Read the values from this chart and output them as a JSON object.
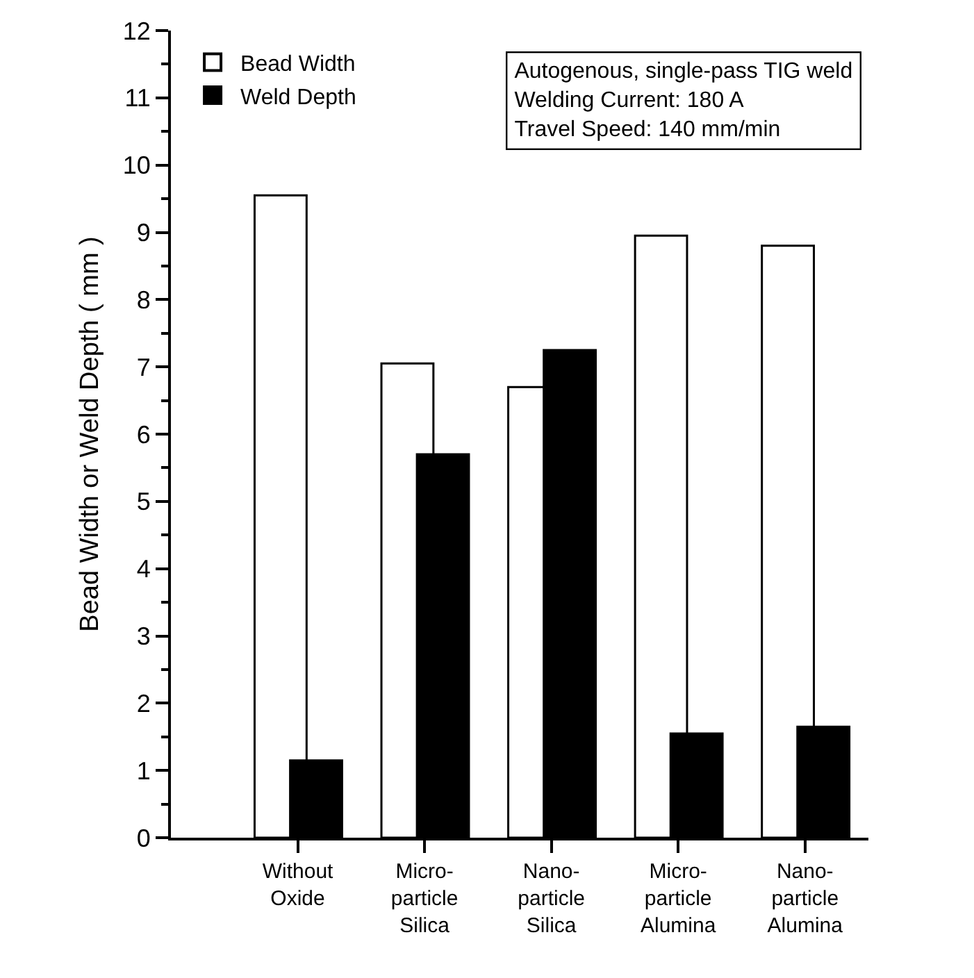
{
  "chart_data": {
    "type": "bar",
    "ylabel": "Bead Width or Weld Depth ( mm )",
    "categories": [
      "Without Oxide",
      "Micro-particle Silica",
      "Nano-particle Silica",
      "Micro-particle Alumina",
      "Nano-particle Alumina"
    ],
    "series": [
      {
        "name": "Bead Width",
        "color": "#ffffff",
        "values": [
          9.55,
          7.05,
          6.7,
          8.95,
          8.8
        ]
      },
      {
        "name": "Weld Depth",
        "color": "#000000",
        "values": [
          1.15,
          5.7,
          7.25,
          1.55,
          1.65
        ]
      }
    ],
    "ylim": [
      0,
      12
    ],
    "yticks": [
      0,
      1,
      2,
      3,
      4,
      5,
      6,
      7,
      8,
      9,
      10,
      11,
      12
    ],
    "annotations": [
      "Autogenous, single-pass TIG weld",
      "Welding Current: 180 A",
      "Travel Speed: 140 mm/min"
    ],
    "legend": "top left",
    "grid": false
  }
}
